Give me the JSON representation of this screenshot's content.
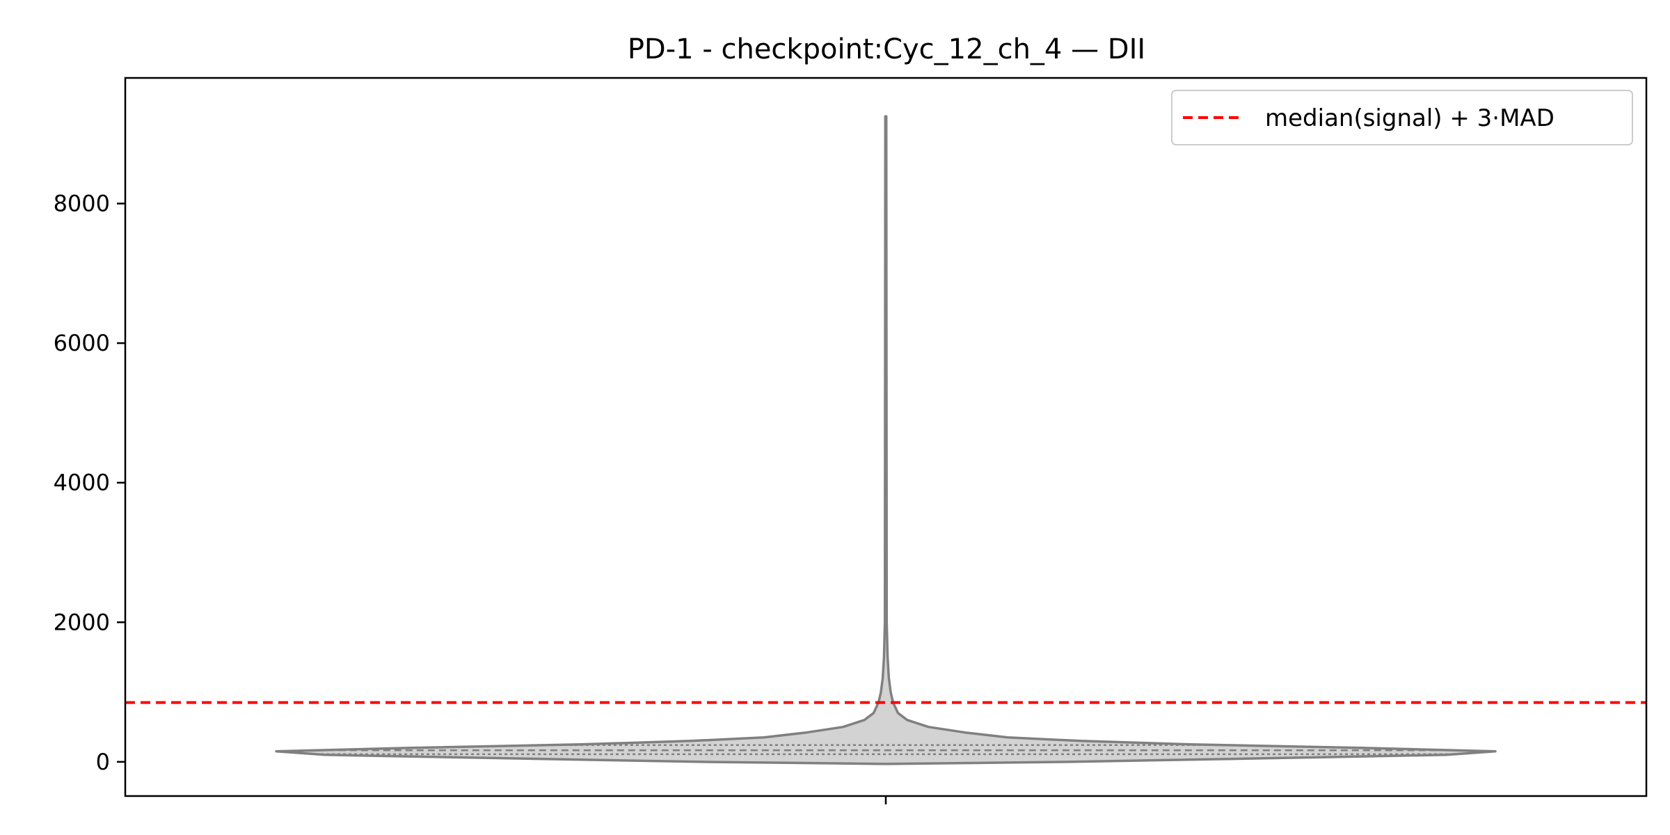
{
  "chart_data": {
    "type": "violin",
    "title": "PD-1 - checkpoint:Cyc_12_ch_4 — DII",
    "xlabel": "",
    "ylabel": "",
    "ylim": [
      -490,
      9800
    ],
    "yticks": [
      0,
      2000,
      4000,
      6000,
      8000
    ],
    "yticklabels": [
      "0",
      "2000",
      "4000",
      "6000",
      "8000"
    ],
    "grid": false,
    "legend": {
      "position": "top-right",
      "entries": [
        {
          "label": "median(signal) + 3·MAD",
          "style": "dashed",
          "color": "#ff0000"
        }
      ]
    },
    "threshold": {
      "value": 850,
      "label": "median(signal) + 3·MAD",
      "color": "#ff0000"
    },
    "violin": {
      "fill_color": "#d3d3d3",
      "edge_color": "#808080",
      "min": -30,
      "max": 9250,
      "density_profile": [
        {
          "y": -30,
          "w": 0.0
        },
        {
          "y": 0,
          "w": 0.3
        },
        {
          "y": 50,
          "w": 0.62
        },
        {
          "y": 100,
          "w": 0.92
        },
        {
          "y": 150,
          "w": 1.0
        },
        {
          "y": 200,
          "w": 0.78
        },
        {
          "y": 250,
          "w": 0.5
        },
        {
          "y": 300,
          "w": 0.32
        },
        {
          "y": 350,
          "w": 0.2
        },
        {
          "y": 420,
          "w": 0.13
        },
        {
          "y": 500,
          "w": 0.07
        },
        {
          "y": 600,
          "w": 0.035
        },
        {
          "y": 700,
          "w": 0.02
        },
        {
          "y": 850,
          "w": 0.012
        },
        {
          "y": 1000,
          "w": 0.008
        },
        {
          "y": 1200,
          "w": 0.005
        },
        {
          "y": 1500,
          "w": 0.003
        },
        {
          "y": 2000,
          "w": 0.0015
        },
        {
          "y": 9250,
          "w": 0.0008
        }
      ],
      "quartiles": [
        110,
        165,
        240
      ]
    }
  },
  "colors": {
    "threshold": "#ff0000",
    "violin_fill": "#d3d3d3",
    "violin_edge": "#808080",
    "axes": "#000000"
  }
}
